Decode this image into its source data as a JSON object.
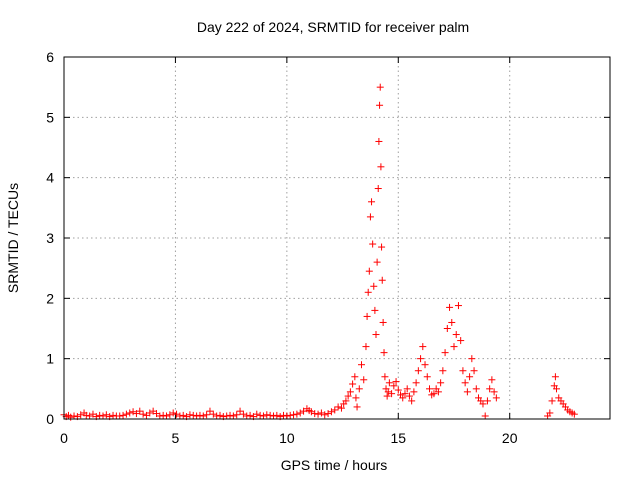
{
  "chart_data": {
    "type": "scatter",
    "title": "Day 222 of 2024, SRMTID for receiver palm",
    "xlabel": "GPS time / hours",
    "ylabel": "SRMTID / TECUs",
    "xlim": [
      0,
      24.5
    ],
    "ylim": [
      0,
      6
    ],
    "xticks": [
      0,
      5,
      10,
      15,
      20
    ],
    "yticks": [
      0,
      1,
      2,
      3,
      4,
      5,
      6
    ],
    "xtick_labels": [
      "0",
      "5",
      "10",
      "15",
      "20"
    ],
    "ytick_labels": [
      "0",
      "1",
      "2",
      "3",
      "4",
      "5",
      "6"
    ],
    "grid": true,
    "marker": "plus",
    "point_color": "#ff0000",
    "series": [
      {
        "name": "SRMTID",
        "points": [
          [
            0.0,
            0.07
          ],
          [
            0.1,
            0.04
          ],
          [
            0.2,
            0.06
          ],
          [
            0.3,
            0.03
          ],
          [
            0.45,
            0.05
          ],
          [
            0.6,
            0.04
          ],
          [
            0.75,
            0.07
          ],
          [
            0.9,
            0.1
          ],
          [
            1.0,
            0.06
          ],
          [
            1.15,
            0.05
          ],
          [
            1.3,
            0.08
          ],
          [
            1.45,
            0.04
          ],
          [
            1.6,
            0.06
          ],
          [
            1.75,
            0.05
          ],
          [
            1.9,
            0.07
          ],
          [
            2.05,
            0.04
          ],
          [
            2.2,
            0.06
          ],
          [
            2.35,
            0.05
          ],
          [
            2.5,
            0.05
          ],
          [
            2.65,
            0.06
          ],
          [
            2.8,
            0.08
          ],
          [
            2.95,
            0.1
          ],
          [
            3.1,
            0.12
          ],
          [
            3.25,
            0.09
          ],
          [
            3.4,
            0.13
          ],
          [
            3.55,
            0.08
          ],
          [
            3.7,
            0.06
          ],
          [
            3.85,
            0.1
          ],
          [
            4.0,
            0.13
          ],
          [
            4.15,
            0.09
          ],
          [
            4.3,
            0.05
          ],
          [
            4.45,
            0.06
          ],
          [
            4.6,
            0.05
          ],
          [
            4.75,
            0.07
          ],
          [
            4.9,
            0.1
          ],
          [
            5.05,
            0.08
          ],
          [
            5.2,
            0.05
          ],
          [
            5.35,
            0.06
          ],
          [
            5.5,
            0.04
          ],
          [
            5.65,
            0.07
          ],
          [
            5.8,
            0.06
          ],
          [
            5.95,
            0.05
          ],
          [
            6.1,
            0.06
          ],
          [
            6.25,
            0.05
          ],
          [
            6.4,
            0.07
          ],
          [
            6.55,
            0.13
          ],
          [
            6.7,
            0.08
          ],
          [
            6.85,
            0.05
          ],
          [
            7.0,
            0.06
          ],
          [
            7.15,
            0.04
          ],
          [
            7.3,
            0.05
          ],
          [
            7.45,
            0.06
          ],
          [
            7.6,
            0.05
          ],
          [
            7.75,
            0.07
          ],
          [
            7.9,
            0.13
          ],
          [
            8.05,
            0.08
          ],
          [
            8.2,
            0.05
          ],
          [
            8.35,
            0.06
          ],
          [
            8.5,
            0.04
          ],
          [
            8.65,
            0.08
          ],
          [
            8.8,
            0.06
          ],
          [
            8.95,
            0.05
          ],
          [
            9.1,
            0.07
          ],
          [
            9.25,
            0.06
          ],
          [
            9.4,
            0.05
          ],
          [
            9.55,
            0.06
          ],
          [
            9.7,
            0.04
          ],
          [
            9.85,
            0.06
          ],
          [
            10.0,
            0.05
          ],
          [
            10.15,
            0.06
          ],
          [
            10.3,
            0.07
          ],
          [
            10.45,
            0.08
          ],
          [
            10.6,
            0.1
          ],
          [
            10.75,
            0.13
          ],
          [
            10.9,
            0.17
          ],
          [
            11.0,
            0.14
          ],
          [
            11.1,
            0.12
          ],
          [
            11.25,
            0.09
          ],
          [
            11.4,
            0.08
          ],
          [
            11.55,
            0.1
          ],
          [
            11.7,
            0.07
          ],
          [
            11.85,
            0.09
          ],
          [
            12.0,
            0.12
          ],
          [
            12.15,
            0.15
          ],
          [
            12.3,
            0.2
          ],
          [
            12.45,
            0.18
          ],
          [
            12.55,
            0.25
          ],
          [
            12.65,
            0.3
          ],
          [
            12.75,
            0.38
          ],
          [
            12.85,
            0.45
          ],
          [
            12.95,
            0.58
          ],
          [
            13.05,
            0.7
          ],
          [
            13.1,
            0.35
          ],
          [
            13.15,
            0.2
          ],
          [
            13.25,
            0.5
          ],
          [
            13.35,
            0.9
          ],
          [
            13.45,
            0.65
          ],
          [
            13.55,
            1.2
          ],
          [
            13.6,
            1.7
          ],
          [
            13.65,
            2.1
          ],
          [
            13.7,
            2.45
          ],
          [
            13.75,
            3.35
          ],
          [
            13.8,
            3.6
          ],
          [
            13.85,
            2.9
          ],
          [
            13.9,
            2.2
          ],
          [
            13.95,
            1.8
          ],
          [
            14.0,
            1.4
          ],
          [
            14.05,
            2.6
          ],
          [
            14.1,
            3.82
          ],
          [
            14.13,
            4.6
          ],
          [
            14.16,
            5.2
          ],
          [
            14.19,
            5.5
          ],
          [
            14.22,
            4.18
          ],
          [
            14.25,
            2.85
          ],
          [
            14.28,
            2.3
          ],
          [
            14.32,
            1.6
          ],
          [
            14.36,
            1.1
          ],
          [
            14.4,
            0.7
          ],
          [
            14.45,
            0.5
          ],
          [
            14.5,
            0.38
          ],
          [
            14.55,
            0.45
          ],
          [
            14.6,
            0.6
          ],
          [
            14.7,
            0.42
          ],
          [
            14.8,
            0.55
          ],
          [
            14.9,
            0.62
          ],
          [
            15.0,
            0.48
          ],
          [
            15.1,
            0.4
          ],
          [
            15.2,
            0.35
          ],
          [
            15.3,
            0.42
          ],
          [
            15.4,
            0.5
          ],
          [
            15.5,
            0.38
          ],
          [
            15.6,
            0.3
          ],
          [
            15.7,
            0.45
          ],
          [
            15.8,
            0.6
          ],
          [
            15.9,
            0.8
          ],
          [
            16.0,
            1.0
          ],
          [
            16.1,
            1.2
          ],
          [
            16.2,
            0.9
          ],
          [
            16.3,
            0.7
          ],
          [
            16.4,
            0.5
          ],
          [
            16.5,
            0.4
          ],
          [
            16.6,
            0.42
          ],
          [
            16.7,
            0.5
          ],
          [
            16.8,
            0.45
          ],
          [
            16.9,
            0.6
          ],
          [
            17.0,
            0.8
          ],
          [
            17.1,
            1.1
          ],
          [
            17.2,
            1.5
          ],
          [
            17.3,
            1.85
          ],
          [
            17.4,
            1.6
          ],
          [
            17.5,
            1.2
          ],
          [
            17.6,
            1.4
          ],
          [
            17.7,
            1.88
          ],
          [
            17.8,
            1.3
          ],
          [
            17.9,
            0.8
          ],
          [
            18.0,
            0.6
          ],
          [
            18.1,
            0.45
          ],
          [
            18.2,
            0.7
          ],
          [
            18.3,
            1.0
          ],
          [
            18.4,
            0.8
          ],
          [
            18.5,
            0.5
          ],
          [
            18.6,
            0.35
          ],
          [
            18.7,
            0.3
          ],
          [
            18.8,
            0.25
          ],
          [
            18.9,
            0.05
          ],
          [
            19.0,
            0.3
          ],
          [
            19.1,
            0.5
          ],
          [
            19.2,
            0.65
          ],
          [
            19.3,
            0.45
          ],
          [
            19.4,
            0.35
          ],
          [
            21.7,
            0.05
          ],
          [
            21.8,
            0.1
          ],
          [
            21.9,
            0.3
          ],
          [
            22.0,
            0.55
          ],
          [
            22.05,
            0.7
          ],
          [
            22.1,
            0.5
          ],
          [
            22.2,
            0.35
          ],
          [
            22.3,
            0.3
          ],
          [
            22.4,
            0.25
          ],
          [
            22.5,
            0.2
          ],
          [
            22.6,
            0.15
          ],
          [
            22.7,
            0.12
          ],
          [
            22.8,
            0.1
          ],
          [
            22.9,
            0.08
          ]
        ]
      }
    ]
  }
}
